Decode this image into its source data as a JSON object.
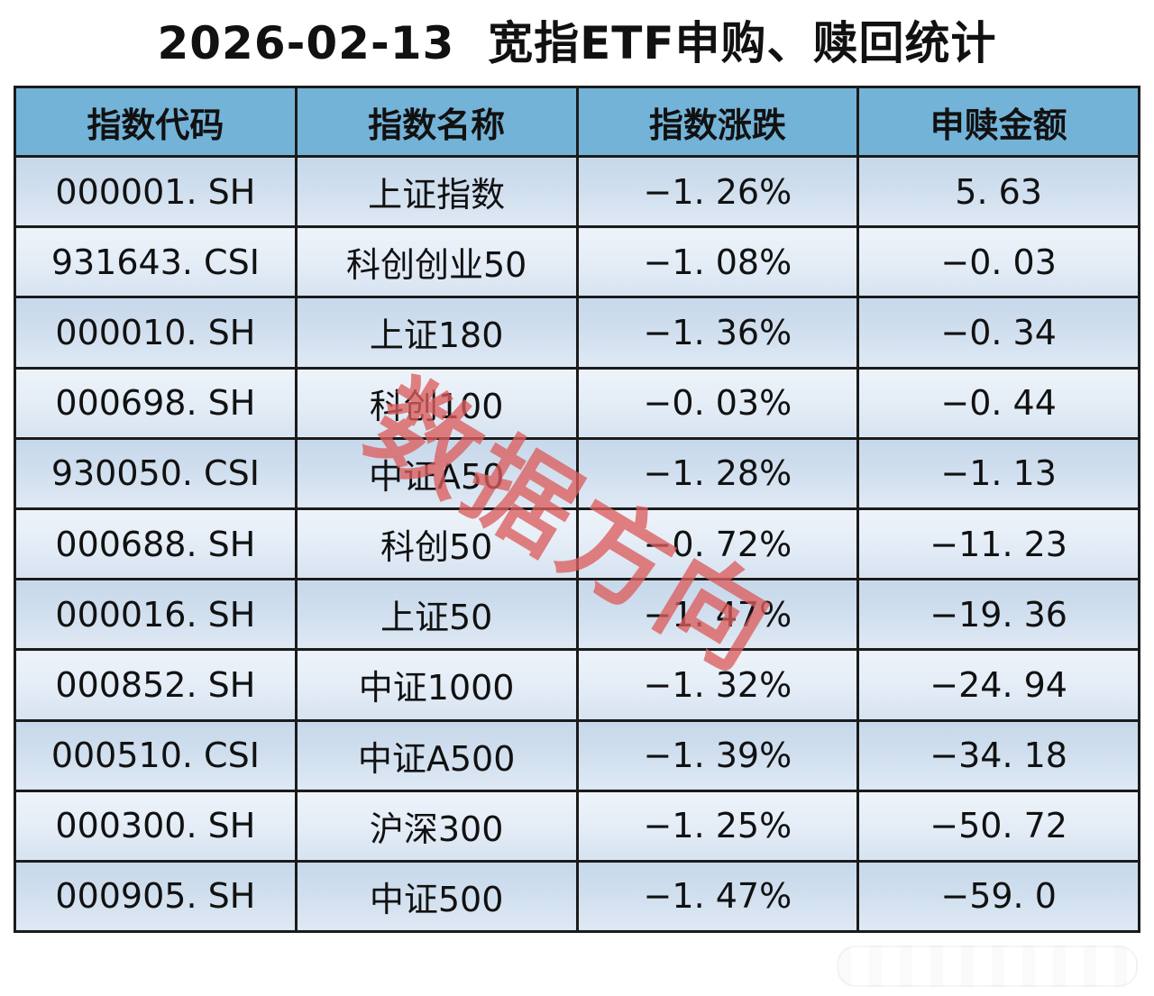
{
  "title": "2026-02-13  宽指ETF申购、赎回统计",
  "watermark": {
    "text": "数据方向",
    "color": "#db5d5d"
  },
  "colors": {
    "header_bg": "#74b3d8",
    "row_odd_top": "#c6d8ea",
    "row_odd_bottom": "#dfe9f4",
    "row_even_top": "#eef3fa",
    "row_even_bottom": "#d7e3f1",
    "border": "#1b1b1b",
    "title_text": "#111111"
  },
  "table": {
    "headers": [
      "指数代码",
      "指数名称",
      "指数涨跌",
      "申赎金额"
    ],
    "rows": [
      {
        "code": "000001. SH",
        "name": "上证指数",
        "change": "−1. 26%",
        "amount": "5. 63"
      },
      {
        "code": "931643. CSI",
        "name": "科创创业50",
        "change": "−1. 08%",
        "amount": "−0. 03"
      },
      {
        "code": "000010. SH",
        "name": "上证180",
        "change": "−1. 36%",
        "amount": "−0. 34"
      },
      {
        "code": "000698. SH",
        "name": "科创100",
        "change": "−0. 03%",
        "amount": "−0. 44"
      },
      {
        "code": "930050. CSI",
        "name": "中证A50",
        "change": "−1. 28%",
        "amount": "−1. 13"
      },
      {
        "code": "000688. SH",
        "name": "科创50",
        "change": "−0. 72%",
        "amount": "−11. 23"
      },
      {
        "code": "000016. SH",
        "name": "上证50",
        "change": "−1. 47%",
        "amount": "−19. 36"
      },
      {
        "code": "000852. SH",
        "name": "中证1000",
        "change": "−1. 32%",
        "amount": "−24. 94"
      },
      {
        "code": "000510. CSI",
        "name": "中证A500",
        "change": "−1. 39%",
        "amount": "−34. 18"
      },
      {
        "code": "000300. SH",
        "name": "沪深300",
        "change": "−1. 25%",
        "amount": "−50. 72"
      },
      {
        "code": "000905. SH",
        "name": "中证500",
        "change": "−1. 47%",
        "amount": "−59. 0"
      }
    ]
  },
  "chart_data": {
    "type": "table",
    "title": "2026-02-13 宽指ETF申购、赎回统计",
    "columns": [
      "指数代码",
      "指数名称",
      "指数涨跌(%)",
      "申赎金额"
    ],
    "rows": [
      [
        "000001.SH",
        "上证指数",
        -1.26,
        5.63
      ],
      [
        "931643.CSI",
        "科创创业50",
        -1.08,
        -0.03
      ],
      [
        "000010.SH",
        "上证180",
        -1.36,
        -0.34
      ],
      [
        "000698.SH",
        "科创100",
        -0.03,
        -0.44
      ],
      [
        "930050.CSI",
        "中证A50",
        -1.28,
        -1.13
      ],
      [
        "000688.SH",
        "科创50",
        -0.72,
        -11.23
      ],
      [
        "000016.SH",
        "上证50",
        -1.47,
        -19.36
      ],
      [
        "000852.SH",
        "中证1000",
        -1.32,
        -24.94
      ],
      [
        "000510.CSI",
        "中证A500",
        -1.39,
        -34.18
      ],
      [
        "000300.SH",
        "沪深300",
        -1.25,
        -50.72
      ],
      [
        "000905.SH",
        "中证500",
        -1.47,
        -59.0
      ]
    ]
  }
}
